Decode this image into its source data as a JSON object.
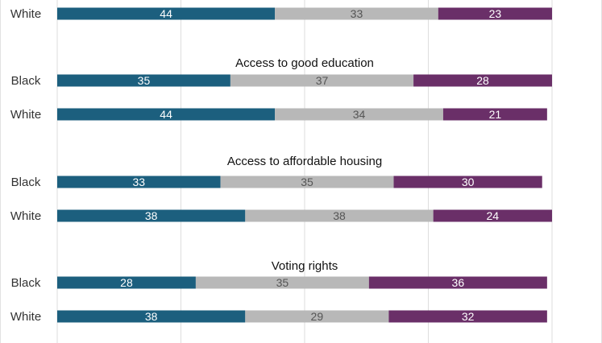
{
  "chart_data": {
    "type": "bar",
    "stacked": true,
    "orientation": "horizontal",
    "xlim": [
      0,
      100
    ],
    "grid": true,
    "colors": [
      "#1c5f7e",
      "#b8b8b8",
      "#6a2f68"
    ],
    "panels": [
      {
        "title": "",
        "rows": [
          {
            "label": "White",
            "values": [
              44,
              33,
              23
            ]
          }
        ]
      },
      {
        "title": "Access to good education",
        "rows": [
          {
            "label": "Black",
            "values": [
              35,
              37,
              28
            ]
          },
          {
            "label": "White",
            "values": [
              44,
              34,
              21
            ]
          }
        ]
      },
      {
        "title": "Access to affordable housing",
        "rows": [
          {
            "label": "Black",
            "values": [
              33,
              35,
              30
            ]
          },
          {
            "label": "White",
            "values": [
              38,
              38,
              24
            ]
          }
        ]
      },
      {
        "title": "Voting rights",
        "rows": [
          {
            "label": "Black",
            "values": [
              28,
              35,
              36
            ]
          },
          {
            "label": "White",
            "values": [
              38,
              29,
              32
            ]
          }
        ]
      }
    ]
  }
}
